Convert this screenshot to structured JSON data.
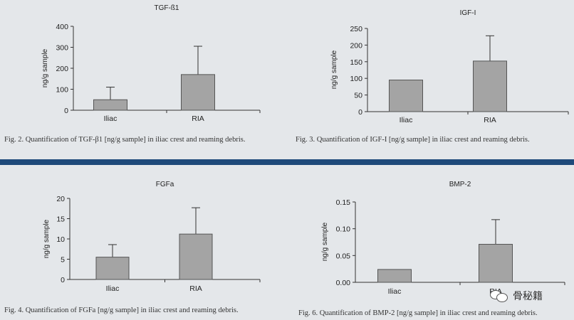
{
  "chart_data": [
    {
      "type": "bar",
      "title": "TGF-ß1",
      "ylabel": "ng/g sample",
      "xlabel": "",
      "categories": [
        "Iliac",
        "RIA"
      ],
      "values": [
        50,
        170
      ],
      "error_upper": [
        110,
        305
      ],
      "ylim": [
        0,
        400
      ],
      "yticks": [
        "0",
        "100",
        "200",
        "300",
        "400"
      ],
      "ytick_values": [
        0,
        100,
        200,
        300,
        400
      ],
      "grid": false,
      "caption": "Fig. 2. Quantification of TGF-β1 [ng/g sample] in iliac crest and reaming debris."
    },
    {
      "type": "bar",
      "title": "IGF-I",
      "ylabel": "ng/g sample",
      "xlabel": "",
      "categories": [
        "Iliac",
        "RIA"
      ],
      "values": [
        95,
        152
      ],
      "error_upper": [
        95,
        228
      ],
      "ylim": [
        0,
        250
      ],
      "yticks": [
        "0",
        "50",
        "100",
        "150",
        "200",
        "250"
      ],
      "ytick_values": [
        0,
        50,
        100,
        150,
        200,
        250
      ],
      "grid": false,
      "caption": "Fig. 3. Quantification of IGF-I [ng/g sample] in iliac crest and reaming debris."
    },
    {
      "type": "bar",
      "title": "FGFa",
      "ylabel": "ng/g sample",
      "xlabel": "",
      "categories": [
        "Iliac",
        "RIA"
      ],
      "values": [
        5.5,
        11.2
      ],
      "error_upper": [
        8.6,
        17.7
      ],
      "ylim": [
        0,
        20
      ],
      "yticks": [
        "0",
        "5",
        "10",
        "15",
        "20"
      ],
      "ytick_values": [
        0,
        5,
        10,
        15,
        20
      ],
      "grid": false,
      "caption": "Fig. 4. Quantification of FGFa [ng/g sample] in iliac crest and reaming debris."
    },
    {
      "type": "bar",
      "title": "BMP-2",
      "ylabel": "ng/g sample",
      "xlabel": "",
      "categories": [
        "Iliac",
        "RIA"
      ],
      "values": [
        0.024,
        0.071
      ],
      "error_upper": [
        0.024,
        0.117
      ],
      "ylim": [
        0,
        0.15
      ],
      "yticks": [
        "0.00",
        "0.05",
        "0.10",
        "0.15"
      ],
      "ytick_values": [
        0,
        0.05,
        0.1,
        0.15
      ],
      "grid": false,
      "caption": "Fig. 6. Quantification of BMP-2 [ng/g sample] in iliac crest and reaming debris."
    }
  ],
  "colors": {
    "bar_fill": "#a4a4a4",
    "bar_stroke": "#555555",
    "axis": "#333333",
    "divider": "#1e4a7a"
  },
  "watermark": {
    "text": "骨秘籍",
    "icon": "chat-bubbles-icon"
  }
}
